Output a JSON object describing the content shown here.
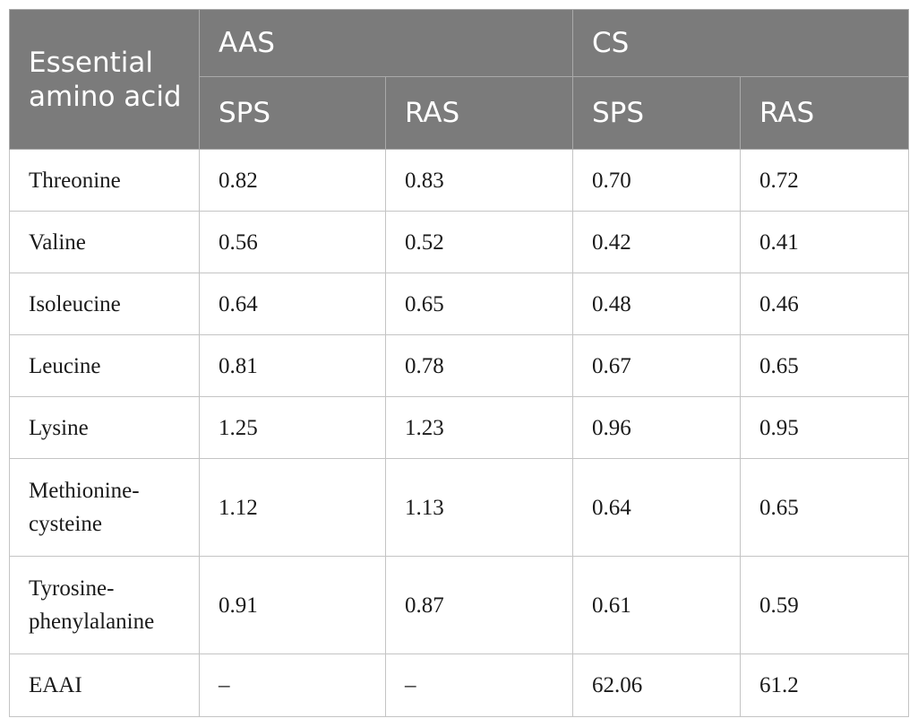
{
  "table": {
    "headers": {
      "essential_amino_acid": "Essential amino acid",
      "aas": "AAS",
      "cs": "CS",
      "aas_sps": "SPS",
      "aas_ras": "RAS",
      "cs_sps": "SPS",
      "cs_ras": "RAS"
    },
    "rows": [
      {
        "name": "Threonine",
        "aas_sps": "0.82",
        "aas_ras": "0.83",
        "cs_sps": "0.70",
        "cs_ras": "0.72"
      },
      {
        "name": "Valine",
        "aas_sps": "0.56",
        "aas_ras": "0.52",
        "cs_sps": "0.42",
        "cs_ras": "0.41"
      },
      {
        "name": "Isoleucine",
        "aas_sps": "0.64",
        "aas_ras": "0.65",
        "cs_sps": "0.48",
        "cs_ras": "0.46"
      },
      {
        "name": "Leucine",
        "aas_sps": "0.81",
        "aas_ras": "0.78",
        "cs_sps": "0.67",
        "cs_ras": "0.65"
      },
      {
        "name": "Lysine",
        "aas_sps": "1.25",
        "aas_ras": "1.23",
        "cs_sps": "0.96",
        "cs_ras": "0.95"
      },
      {
        "name": "Methionine-cysteine",
        "aas_sps": "1.12",
        "aas_ras": "1.13",
        "cs_sps": "0.64",
        "cs_ras": "0.65"
      },
      {
        "name": "Tyrosine-phenylalanine",
        "aas_sps": "0.91",
        "aas_ras": "0.87",
        "cs_sps": "0.61",
        "cs_ras": "0.59"
      },
      {
        "name": "EAAI",
        "aas_sps": "–",
        "aas_ras": "–",
        "cs_sps": "62.06",
        "cs_ras": "61.2"
      }
    ]
  }
}
